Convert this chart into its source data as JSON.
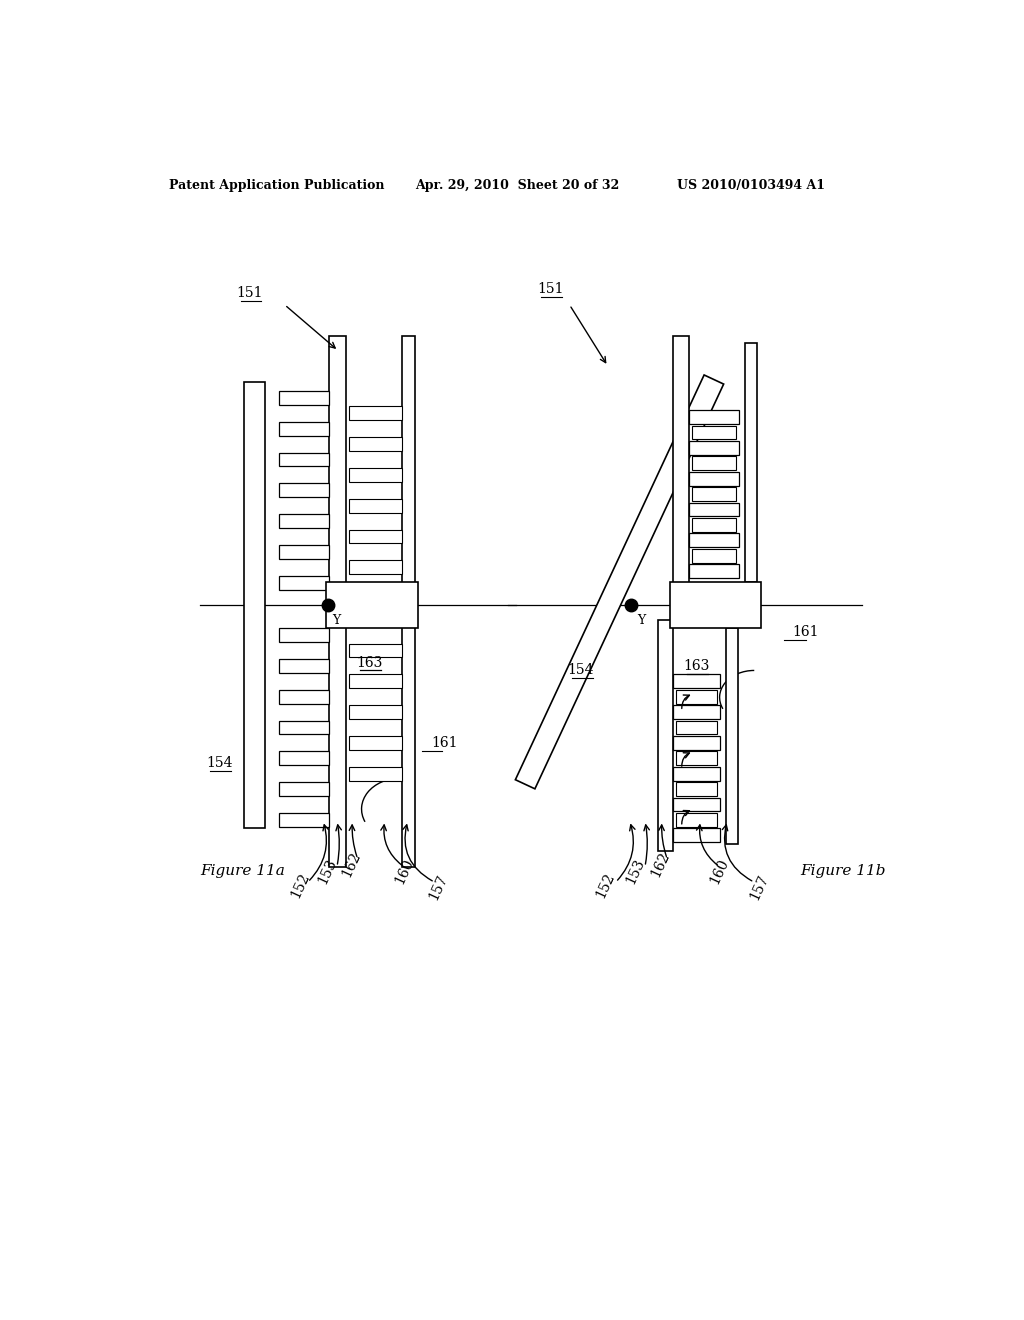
{
  "header_left": "Patent Application Publication",
  "header_mid": "Apr. 29, 2010  Sheet 20 of 32",
  "header_right": "US 2010/0103494 A1",
  "fig_label_a": "Figure 11a",
  "fig_label_b": "Figure 11b",
  "bg_color": "#ffffff",
  "line_color": "#000000",
  "text_color": "#000000"
}
